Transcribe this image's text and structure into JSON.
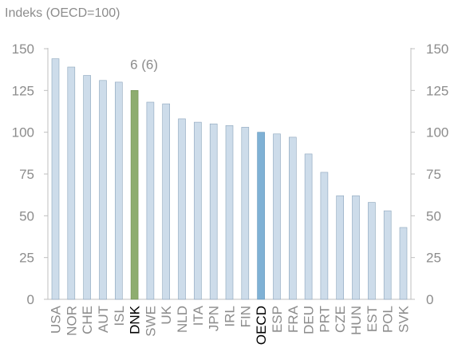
{
  "chart_data": {
    "type": "bar",
    "unit_label": "Indeks (OECD=100)",
    "annotation": "6 (6)",
    "highlight_country": "DNK",
    "reference_country": "OECD",
    "categories": [
      "USA",
      "NOR",
      "CHE",
      "AUT",
      "ISL",
      "DNK",
      "SWE",
      "UK",
      "NLD",
      "ITA",
      "JPN",
      "IRL",
      "FIN",
      "OECD",
      "ESP",
      "FRA",
      "DEU",
      "PRT",
      "CZE",
      "HUN",
      "EST",
      "POL",
      "SVK"
    ],
    "values": [
      144,
      139,
      134,
      131,
      130,
      125,
      118,
      117,
      108,
      106,
      105,
      104,
      103,
      100,
      99,
      97,
      87,
      76,
      62,
      62,
      58,
      53,
      43
    ],
    "ylim": [
      0,
      150
    ],
    "yticks": [
      0,
      25,
      50,
      75,
      100,
      125,
      150
    ],
    "ytick_labels": [
      "0",
      "25",
      "50",
      "75",
      "100",
      "125",
      "150"
    ],
    "secondary_axis_right": true,
    "grid": false,
    "colors": {
      "default_bar": "#cddcea",
      "default_bar_stroke": "#8aa4bb",
      "highlight_bar": "#8ead6f",
      "reference_bar": "#7fb1d5",
      "axis_text": "#8c8c8c",
      "highlight_label": "#000000"
    }
  }
}
